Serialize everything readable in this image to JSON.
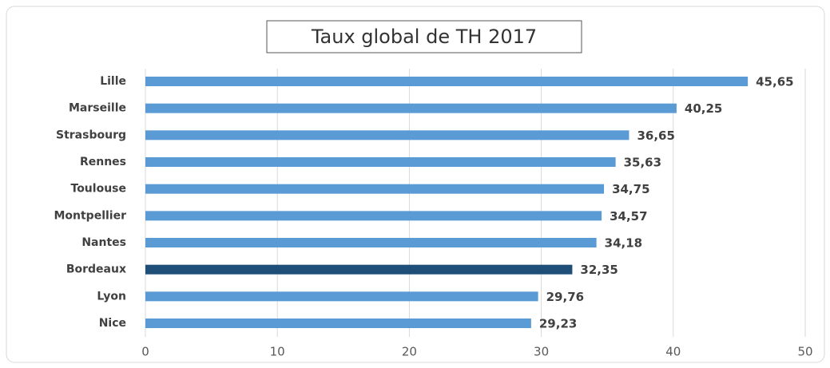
{
  "chart_data": {
    "type": "hbar",
    "title": "Taux global de TH 2017",
    "categories": [
      "Lille",
      "Marseille",
      "Strasbourg",
      "Rennes",
      "Toulouse",
      "Montpellier",
      "Nantes",
      "Bordeaux",
      "Lyon",
      "Nice"
    ],
    "values": [
      45.65,
      40.25,
      36.65,
      35.63,
      34.75,
      34.57,
      34.18,
      32.35,
      29.76,
      29.23
    ],
    "value_labels": [
      "45,65",
      "40,25",
      "36,65",
      "35,63",
      "34,75",
      "34,57",
      "34,18",
      "32,35",
      "29,76",
      "29,23"
    ],
    "colors": [
      "#5b9bd5",
      "#5b9bd5",
      "#5b9bd5",
      "#5b9bd5",
      "#5b9bd5",
      "#5b9bd5",
      "#5b9bd5",
      "#1f4e79",
      "#5b9bd5",
      "#5b9bd5"
    ],
    "xlim": [
      0,
      50
    ],
    "xticks": [
      0,
      10,
      20,
      30,
      40,
      50
    ],
    "grid": true
  }
}
